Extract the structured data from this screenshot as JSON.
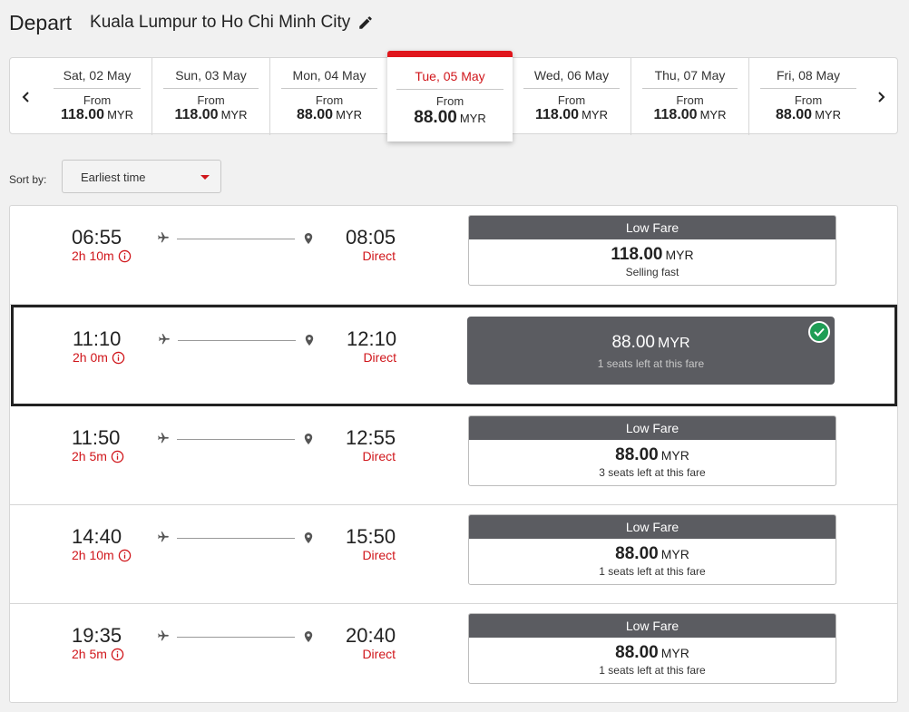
{
  "header": {
    "title": "Depart",
    "route": "Kuala Lumpur to Ho Chi Minh City"
  },
  "dates": [
    {
      "label": "Sat, 02 May",
      "from": "From",
      "price": "118.00",
      "currency": "MYR"
    },
    {
      "label": "Sun, 03 May",
      "from": "From",
      "price": "118.00",
      "currency": "MYR"
    },
    {
      "label": "Mon, 04 May",
      "from": "From",
      "price": "88.00",
      "currency": "MYR"
    },
    {
      "label": "Tue, 05 May",
      "from": "From",
      "price": "88.00",
      "currency": "MYR",
      "selected": true
    },
    {
      "label": "Wed, 06 May",
      "from": "From",
      "price": "118.00",
      "currency": "MYR"
    },
    {
      "label": "Thu, 07 May",
      "from": "From",
      "price": "118.00",
      "currency": "MYR"
    },
    {
      "label": "Fri, 08 May",
      "from": "From",
      "price": "88.00",
      "currency": "MYR"
    }
  ],
  "sort": {
    "label": "Sort by:",
    "value": "Earliest time"
  },
  "flights": [
    {
      "depart": "06:55",
      "duration": "2h 10m",
      "arrive": "08:05",
      "stops": "Direct",
      "fare_label": "Low Fare",
      "price": "118.00",
      "currency": "MYR",
      "note": "Selling fast",
      "selected": false
    },
    {
      "depart": "11:10",
      "duration": "2h 0m",
      "arrive": "12:10",
      "stops": "Direct",
      "fare_label": "",
      "price": "88.00",
      "currency": "MYR",
      "note": "1 seats left at this fare",
      "selected": true
    },
    {
      "depart": "11:50",
      "duration": "2h 5m",
      "arrive": "12:55",
      "stops": "Direct",
      "fare_label": "Low Fare",
      "price": "88.00",
      "currency": "MYR",
      "note": "3 seats left at this fare",
      "selected": false
    },
    {
      "depart": "14:40",
      "duration": "2h 10m",
      "arrive": "15:50",
      "stops": "Direct",
      "fare_label": "Low Fare",
      "price": "88.00",
      "currency": "MYR",
      "note": "1 seats left at this fare",
      "selected": false
    },
    {
      "depart": "19:35",
      "duration": "2h 5m",
      "arrive": "20:40",
      "stops": "Direct",
      "fare_label": "Low Fare",
      "price": "88.00",
      "currency": "MYR",
      "note": "1 seats left at this fare",
      "selected": false
    }
  ],
  "icons": {
    "edit": "pencil-icon",
    "prev": "chevron-left-icon",
    "next": "chevron-right-icon",
    "dropdown": "caret-down-icon",
    "info": "info-icon",
    "plane": "plane-icon",
    "destination": "location-pin-icon",
    "selected": "check-icon"
  },
  "colors": {
    "accent": "#d0161b",
    "fare_header": "#5b5c61",
    "selected_check": "#1f9d55"
  }
}
